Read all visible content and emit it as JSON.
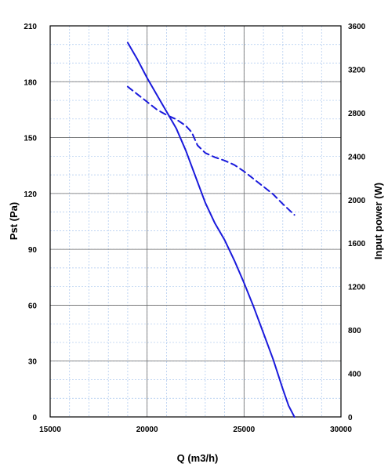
{
  "chart_data": {
    "type": "line",
    "xlabel": "Q (m3/h)",
    "ylabel": "Pst (Pa)",
    "y2label": "Input power  (W)",
    "xlim": [
      15000,
      30000
    ],
    "ylim": [
      0,
      210
    ],
    "y2lim": [
      0,
      3600
    ],
    "x_ticks": [
      15000,
      20000,
      25000,
      30000
    ],
    "y_ticks": [
      0,
      30,
      60,
      90,
      120,
      150,
      180,
      210
    ],
    "y2_ticks": [
      0,
      400,
      800,
      1200,
      1600,
      2000,
      2400,
      2800,
      3200,
      3600
    ],
    "grid": true,
    "series": [
      {
        "axis": "left",
        "style": "solid",
        "color": "#1a1adc",
        "x": [
          19000,
          19500,
          20000,
          20500,
          21000,
          21500,
          22000,
          22500,
          23000,
          23500,
          24000,
          24500,
          25000,
          25500,
          26000,
          26500,
          27000,
          27300,
          27600
        ],
        "y": [
          201,
          192,
          182,
          173,
          164,
          155,
          143,
          129,
          115,
          104,
          95,
          84,
          72,
          59,
          45,
          31,
          15,
          6,
          0
        ]
      },
      {
        "axis": "right",
        "style": "dashed",
        "color": "#1a1adc",
        "x": [
          19000,
          19500,
          20000,
          20500,
          21000,
          21500,
          22000,
          22300,
          22600,
          23000,
          23500,
          24000,
          24500,
          25000,
          25500,
          26000,
          26500,
          27000,
          27600
        ],
        "y": [
          3040,
          2970,
          2900,
          2830,
          2780,
          2740,
          2680,
          2620,
          2500,
          2430,
          2390,
          2360,
          2320,
          2260,
          2190,
          2120,
          2050,
          1960,
          1860
        ]
      }
    ]
  }
}
